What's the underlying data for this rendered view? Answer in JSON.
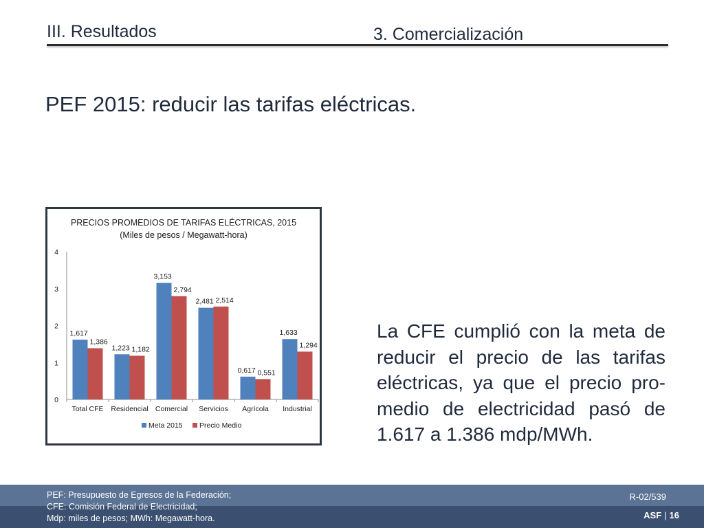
{
  "header": {
    "section_title": "III. Resultados",
    "subsection_title": "3. Comercialización"
  },
  "headline": "PEF 2015: reducir las tarifas eléctricas.",
  "body_text": "La CFE cumplió con la meta de reducir el precio de las tarifas eléctricas, ya que el precio pro-medio de electricidad pasó de 1.617 a 1.386 mdp/MWh.",
  "chart_data": {
    "type": "bar",
    "title": "PRECIOS PROMEDIOS DE TARIFAS ELÉCTRICAS, 2015",
    "subtitle": "(Miles de pesos / Megawatt-hora)",
    "categories": [
      "Total CFE",
      "Residencial",
      "Comercial",
      "Servicios",
      "Agrícola",
      "Industrial"
    ],
    "series": [
      {
        "name": "Meta 2015",
        "color": "#4f81bd",
        "values": [
          1.617,
          1.223,
          3.153,
          2.481,
          0.617,
          1.633
        ],
        "labels": [
          "1,617",
          "1,223",
          "3,153",
          "2,481",
          "0,617",
          "1,633"
        ]
      },
      {
        "name": "Precio Medio",
        "color": "#c0504d",
        "values": [
          1.386,
          1.182,
          2.794,
          2.514,
          0.551,
          1.294
        ],
        "labels": [
          "1,386",
          "1,182",
          "2,794",
          "2,514",
          "0,551",
          "1,294"
        ]
      }
    ],
    "ylim": [
      0,
      4
    ],
    "yticks": [
      "0",
      "1",
      "2",
      "3",
      "4"
    ],
    "legend_position": "bottom",
    "grid": false
  },
  "footer": {
    "notes": [
      "PEF: Presupuesto de Egresos de la Federación;",
      "CFE: Comisión Federal de Electricidad;",
      "Mdp: miles de pesos; MWh: Megawatt-hora."
    ],
    "doc_ref": "R-02/539",
    "org": "ASF",
    "separator": "|",
    "page_number": "16"
  }
}
